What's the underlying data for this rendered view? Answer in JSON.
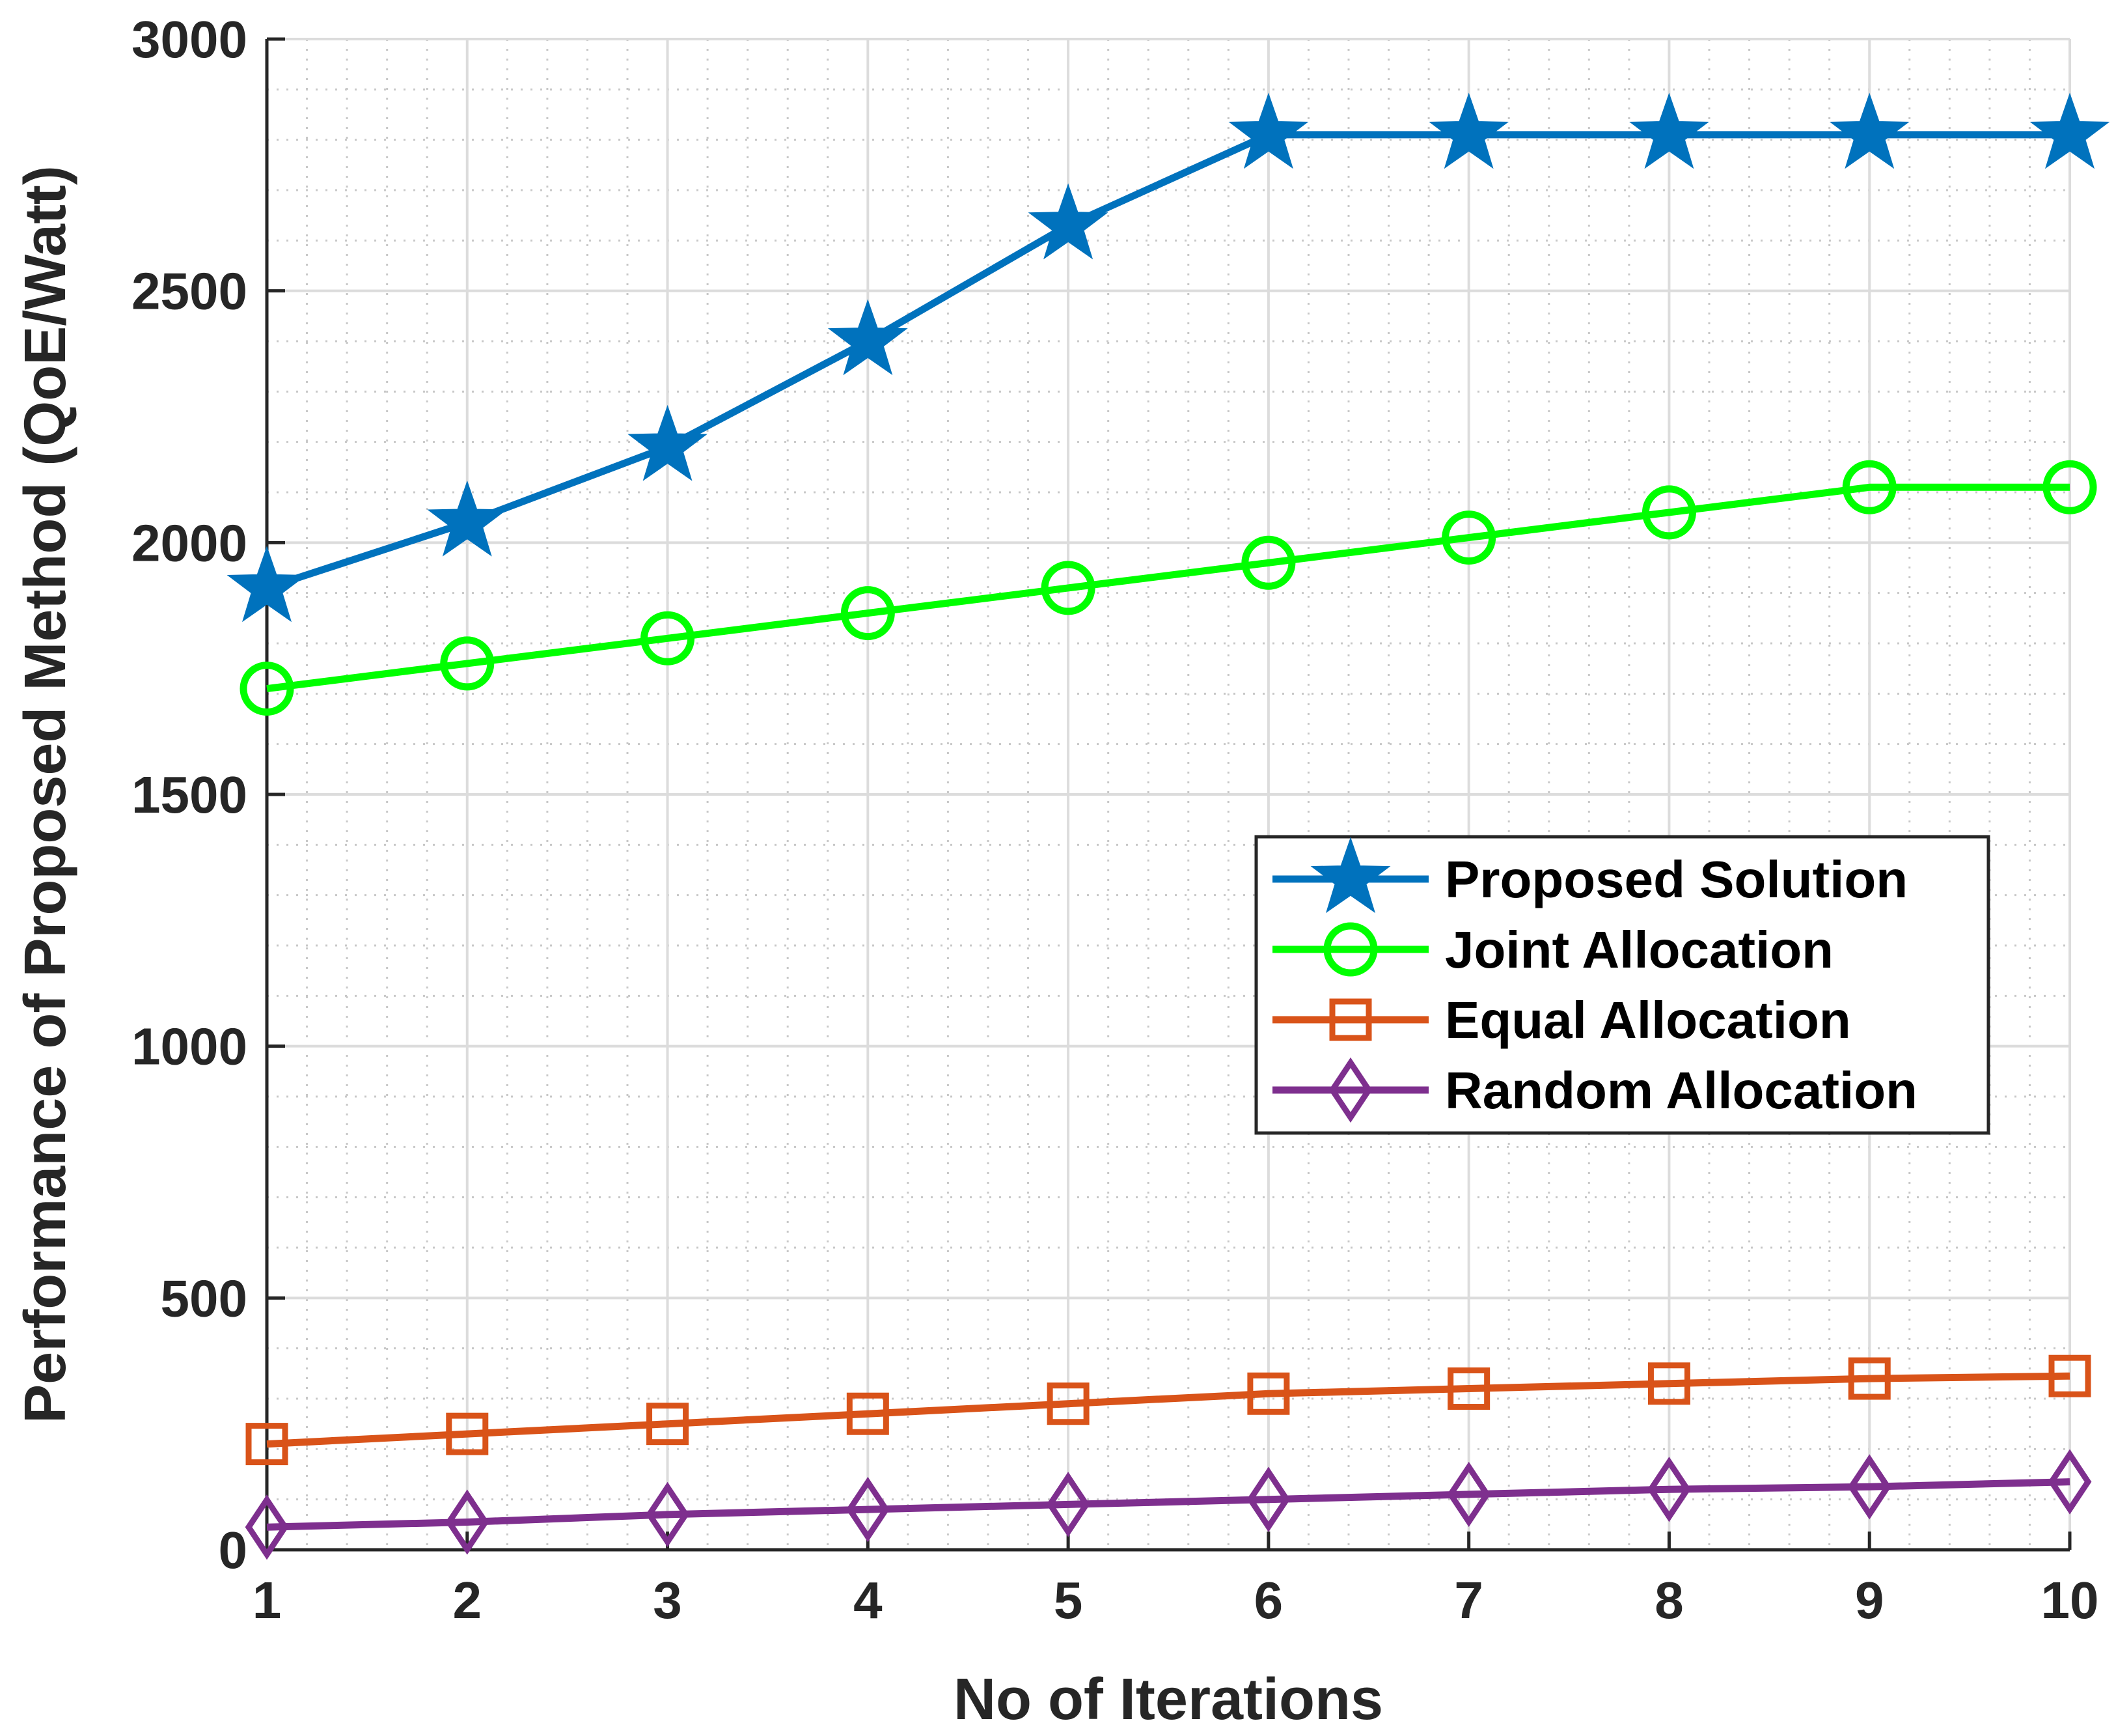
{
  "chart_data": {
    "type": "line",
    "title": "",
    "xlabel": "No of Iterations",
    "ylabel": "Performance of Proposed Method (QoE/Watt)",
    "x": [
      1,
      2,
      3,
      4,
      5,
      6,
      7,
      8,
      9,
      10
    ],
    "xlim": [
      1,
      10
    ],
    "ylim": [
      0,
      3000
    ],
    "xticks": [
      "1",
      "2",
      "3",
      "4",
      "5",
      "6",
      "7",
      "8",
      "9",
      "10"
    ],
    "yticks": [
      "0",
      "500",
      "1000",
      "1500",
      "2000",
      "2500",
      "3000"
    ],
    "grid": "on (major and minor)",
    "legend_location": "right-center",
    "series": [
      {
        "name": "Proposed Solution",
        "marker": "star",
        "color": "#0072BD",
        "values": [
          1910,
          2040,
          2190,
          2400,
          2630,
          2810,
          2810,
          2810,
          2810,
          2810
        ]
      },
      {
        "name": "Joint Allocation",
        "marker": "circle",
        "color": "#00FF00",
        "values": [
          1710,
          1760,
          1810,
          1860,
          1910,
          1960,
          2010,
          2060,
          2110,
          2110
        ]
      },
      {
        "name": "Equal Allocation",
        "marker": "square",
        "color": "#D95319",
        "values": [
          210,
          230,
          250,
          270,
          290,
          310,
          320,
          330,
          340,
          345
        ]
      },
      {
        "name": "Random Allocation",
        "marker": "diamond",
        "color": "#7E2F8E",
        "values": [
          45,
          55,
          70,
          80,
          90,
          100,
          110,
          120,
          125,
          135
        ]
      }
    ]
  }
}
